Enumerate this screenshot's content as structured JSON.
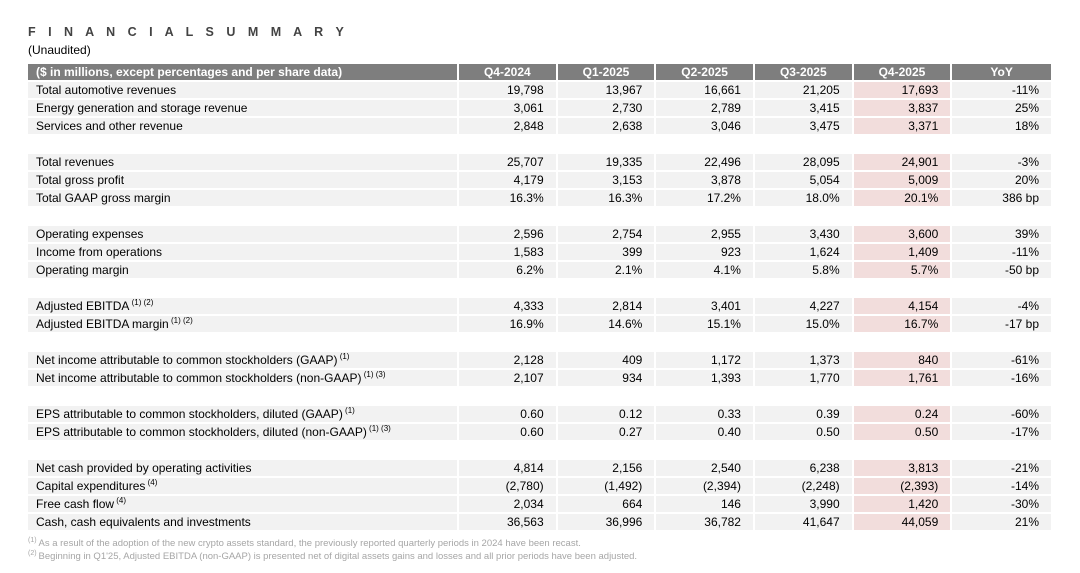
{
  "page": {
    "title": "F I N A N C I A L   S U M M A R Y",
    "subtitle": "(Unaudited)"
  },
  "table": {
    "header": {
      "label": "($ in millions, except percentages and per share data)",
      "columns": [
        "Q4-2024",
        "Q1-2025",
        "Q2-2025",
        "Q3-2025",
        "Q4-2025",
        "YoY"
      ],
      "highlight_column": "Q4-2025"
    },
    "colors": {
      "header_bg": "#7e7e7e",
      "header_text": "#ffffff",
      "row_bg": "#f2f2f2",
      "highlight_bg": "#f2dddc",
      "footnote_text": "#a6a6a6"
    },
    "groups": [
      {
        "rows": [
          {
            "label": "Total automotive revenues",
            "sup": "",
            "values": [
              "19,798",
              "13,967",
              "16,661",
              "21,205",
              "17,693",
              "-11%"
            ]
          },
          {
            "label": "Energy generation and storage revenue",
            "sup": "",
            "values": [
              "3,061",
              "2,730",
              "2,789",
              "3,415",
              "3,837",
              "25%"
            ]
          },
          {
            "label": "Services and other revenue",
            "sup": "",
            "values": [
              "2,848",
              "2,638",
              "3,046",
              "3,475",
              "3,371",
              "18%"
            ]
          }
        ]
      },
      {
        "rows": [
          {
            "label": "Total revenues",
            "sup": "",
            "values": [
              "25,707",
              "19,335",
              "22,496",
              "28,095",
              "24,901",
              "-3%"
            ]
          },
          {
            "label": "Total gross profit",
            "sup": "",
            "values": [
              "4,179",
              "3,153",
              "3,878",
              "5,054",
              "5,009",
              "20%"
            ]
          },
          {
            "label": "Total GAAP gross margin",
            "sup": "",
            "values": [
              "16.3%",
              "16.3%",
              "17.2%",
              "18.0%",
              "20.1%",
              "386 bp"
            ]
          }
        ]
      },
      {
        "rows": [
          {
            "label": "Operating expenses",
            "sup": "",
            "values": [
              "2,596",
              "2,754",
              "2,955",
              "3,430",
              "3,600",
              "39%"
            ]
          },
          {
            "label": "Income from operations",
            "sup": "",
            "values": [
              "1,583",
              "399",
              "923",
              "1,624",
              "1,409",
              "-11%"
            ]
          },
          {
            "label": "Operating margin",
            "sup": "",
            "values": [
              "6.2%",
              "2.1%",
              "4.1%",
              "5.8%",
              "5.7%",
              "-50 bp"
            ]
          }
        ]
      },
      {
        "rows": [
          {
            "label": "Adjusted EBITDA",
            "sup": "(1) (2)",
            "values": [
              "4,333",
              "2,814",
              "3,401",
              "4,227",
              "4,154",
              "-4%"
            ]
          },
          {
            "label": "Adjusted EBITDA margin",
            "sup": "(1) (2)",
            "values": [
              "16.9%",
              "14.6%",
              "15.1%",
              "15.0%",
              "16.7%",
              "-17 bp"
            ]
          }
        ]
      },
      {
        "rows": [
          {
            "label": "Net income attributable to common stockholders (GAAP)",
            "sup": "(1)",
            "values": [
              "2,128",
              "409",
              "1,172",
              "1,373",
              "840",
              "-61%"
            ]
          },
          {
            "label": "Net income attributable to common stockholders (non-GAAP)",
            "sup": "(1) (3)",
            "values": [
              "2,107",
              "934",
              "1,393",
              "1,770",
              "1,761",
              "-16%"
            ]
          }
        ]
      },
      {
        "rows": [
          {
            "label": "EPS attributable to common stockholders, diluted (GAAP)",
            "sup": "(1)",
            "values": [
              "0.60",
              "0.12",
              "0.33",
              "0.39",
              "0.24",
              "-60%"
            ]
          },
          {
            "label": "EPS attributable to common stockholders, diluted (non-GAAP)",
            "sup": "(1) (3)",
            "values": [
              "0.60",
              "0.27",
              "0.40",
              "0.50",
              "0.50",
              "-17%"
            ]
          }
        ]
      },
      {
        "rows": [
          {
            "label": "Net cash provided by operating activities",
            "sup": "",
            "values": [
              "4,814",
              "2,156",
              "2,540",
              "6,238",
              "3,813",
              "-21%"
            ]
          },
          {
            "label": "Capital expenditures",
            "sup": "(4)",
            "values": [
              "(2,780)",
              "(1,492)",
              "(2,394)",
              "(2,248)",
              "(2,393)",
              "-14%"
            ]
          },
          {
            "label": "Free cash flow",
            "sup": "(4)",
            "values": [
              "2,034",
              "664",
              "146",
              "3,990",
              "1,420",
              "-30%"
            ]
          },
          {
            "label": "Cash, cash equivalents and investments",
            "sup": "",
            "values": [
              "36,563",
              "36,996",
              "36,782",
              "41,647",
              "44,059",
              "21%"
            ]
          }
        ]
      }
    ],
    "footnotes": [
      {
        "sup": "(1)",
        "text": "As a result of the adoption of the new crypto assets standard, the previously reported quarterly periods in 2024 have been recast."
      },
      {
        "sup": "(2)",
        "text": "Beginning in Q1'25, Adjusted EBITDA (non-GAAP) is presented net of digital assets gains and losses and all prior periods have been adjusted."
      }
    ]
  }
}
